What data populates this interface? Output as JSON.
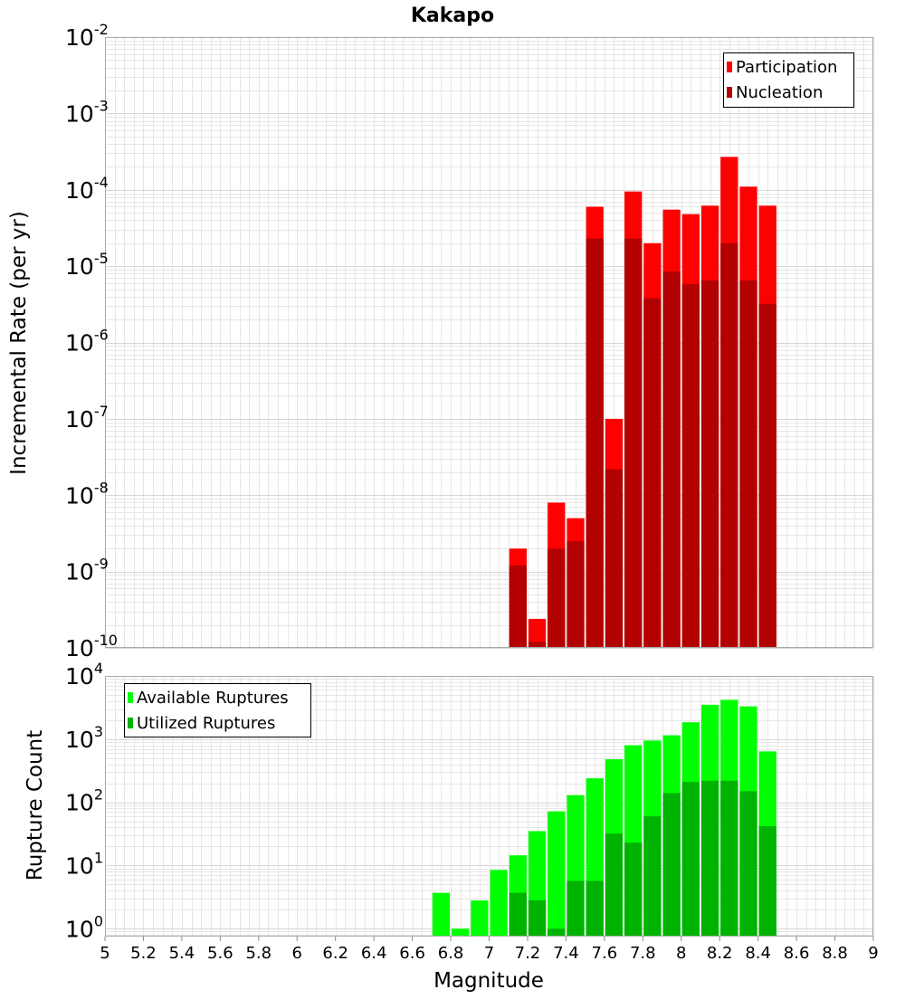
{
  "title": "Kakapo",
  "xlabel": "Magnitude",
  "x_ticks": [
    5,
    5.2,
    5.4,
    5.6,
    5.8,
    6,
    6.2,
    6.4,
    6.6,
    6.8,
    7,
    7.2,
    7.4,
    7.6,
    7.8,
    8,
    8.2,
    8.4,
    8.6,
    8.8,
    9
  ],
  "colors": {
    "participation": "#ff0000",
    "nucleation": "#b30000",
    "available": "#00ff00",
    "utilized": "#00b300",
    "grid": "#e6e6e6",
    "frame": "#aaaaaa"
  },
  "chart_data": [
    {
      "type": "bar",
      "scale": "log",
      "ylabel": "Incremental Rate (per yr)",
      "xlim": [
        5,
        9
      ],
      "ylim": [
        1e-10,
        0.01
      ],
      "y_ticks": [
        {
          "base": "10",
          "exp": "-2"
        },
        {
          "base": "10",
          "exp": "-3"
        },
        {
          "base": "10",
          "exp": "-4"
        },
        {
          "base": "10",
          "exp": "-5"
        },
        {
          "base": "10",
          "exp": "-6"
        },
        {
          "base": "10",
          "exp": "-7"
        },
        {
          "base": "10",
          "exp": "-8"
        },
        {
          "base": "10",
          "exp": "-9"
        },
        {
          "base": "10",
          "exp": "-10"
        }
      ],
      "legend_position": "top-right",
      "x": [
        7.15,
        7.25,
        7.35,
        7.45,
        7.55,
        7.65,
        7.75,
        7.85,
        7.95,
        8.05,
        8.15,
        8.25,
        8.35,
        8.45
      ],
      "series": [
        {
          "name": "Participation",
          "values": [
            2e-09,
            2.4e-10,
            8e-09,
            5e-09,
            6e-05,
            1e-07,
            9.5e-05,
            2e-05,
            5.5e-05,
            4.8e-05,
            6.2e-05,
            0.00027,
            0.00011,
            6.2e-05
          ]
        },
        {
          "name": "Nucleation",
          "values": [
            1.2e-09,
            1.2e-10,
            2e-09,
            2.5e-09,
            2.3e-05,
            2.2e-08,
            2.3e-05,
            3.8e-06,
            8.5e-06,
            5.8e-06,
            6.5e-06,
            2e-05,
            6.5e-06,
            3.2e-06
          ]
        }
      ]
    },
    {
      "type": "bar",
      "scale": "log",
      "ylabel": "Rupture Count",
      "xlim": [
        5,
        9
      ],
      "ylim": [
        0.75,
        10000
      ],
      "y_ticks": [
        {
          "base": "10",
          "exp": "4"
        },
        {
          "base": "10",
          "exp": "3"
        },
        {
          "base": "10",
          "exp": "2"
        },
        {
          "base": "10",
          "exp": "1"
        },
        {
          "base": "10",
          "exp": "0"
        }
      ],
      "legend_position": "top-left",
      "x": [
        6.75,
        6.85,
        6.95,
        7.05,
        7.15,
        7.25,
        7.35,
        7.45,
        7.55,
        7.65,
        7.75,
        7.85,
        7.95,
        8.05,
        8.15,
        8.25,
        8.35,
        8.45
      ],
      "series": [
        {
          "name": "Available Ruptures",
          "values": [
            3.7,
            1.0,
            2.8,
            8.5,
            14.5,
            35,
            72,
            130,
            240,
            480,
            800,
            950,
            1150,
            1850,
            3500,
            4200,
            3300,
            640
          ]
        },
        {
          "name": "Utilized Ruptures",
          "values": [
            0,
            0,
            0,
            0,
            3.7,
            2.8,
            1.0,
            5.7,
            5.7,
            32,
            23,
            60,
            140,
            210,
            220,
            220,
            150,
            42
          ]
        }
      ]
    }
  ]
}
